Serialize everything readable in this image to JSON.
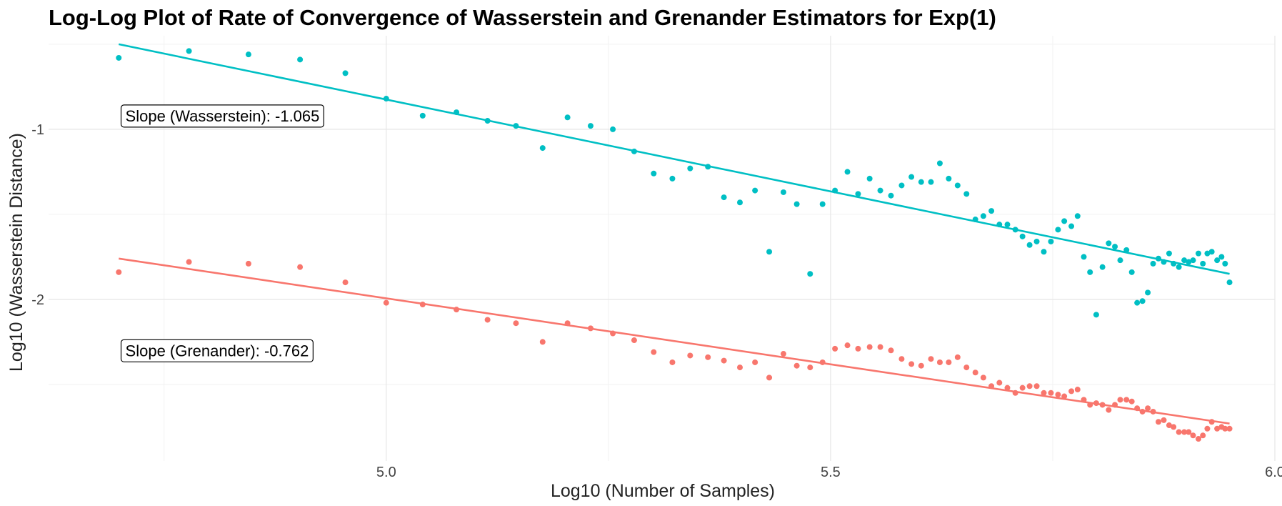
{
  "chart_data": {
    "type": "scatter",
    "title": "Log-Log Plot of Rate of Convergence of Wasserstein and Grenander Estimators for Exp(1)",
    "xlabel": "Log10 (Number of Samples)",
    "ylabel": "Log10 (Wasserstein Distance)",
    "xlim": [
      4.62,
      6.0
    ],
    "ylim": [
      -2.95,
      -0.45
    ],
    "x_ticks": [
      5.0,
      5.5,
      6.0
    ],
    "x_tick_labels": [
      "5.0",
      "5.5",
      "6.0"
    ],
    "y_ticks": [
      -1,
      -2
    ],
    "y_tick_labels": [
      "-1",
      "-2"
    ],
    "grid": true,
    "legend": "none",
    "series": [
      {
        "color": "#00BFC4",
        "x": [
          4.699,
          4.778,
          4.845,
          4.903,
          4.954,
          5.0,
          5.041,
          5.079,
          5.114,
          5.146,
          5.176,
          5.204,
          5.23,
          5.255,
          5.279,
          5.301,
          5.322,
          5.342,
          5.362,
          5.38,
          5.398,
          5.415,
          5.431,
          5.447,
          5.462,
          5.477,
          5.491,
          5.505,
          5.519,
          5.531,
          5.544,
          5.556,
          5.568,
          5.58,
          5.591,
          5.602,
          5.613,
          5.623,
          5.633,
          5.643,
          5.653,
          5.663,
          5.672,
          5.681,
          5.69,
          5.699,
          5.708,
          5.716,
          5.724,
          5.732,
          5.74,
          5.748,
          5.756,
          5.763,
          5.771,
          5.778,
          5.785,
          5.792,
          5.799,
          5.806,
          5.813,
          5.82,
          5.826,
          5.833,
          5.839,
          5.845,
          5.851,
          5.857,
          5.863,
          5.869,
          5.875,
          5.881,
          5.886,
          5.892,
          5.898,
          5.903,
          5.908,
          5.914,
          5.919,
          5.924,
          5.929,
          5.935,
          5.94,
          5.944,
          5.949
        ],
        "y": [
          -0.58,
          -0.54,
          -0.56,
          -0.59,
          -0.67,
          -0.82,
          -0.92,
          -0.9,
          -0.95,
          -0.98,
          -1.11,
          -0.93,
          -0.98,
          -1.0,
          -1.13,
          -1.26,
          -1.29,
          -1.23,
          -1.22,
          -1.4,
          -1.43,
          -1.36,
          -1.72,
          -1.37,
          -1.44,
          -1.85,
          -1.44,
          -1.36,
          -1.25,
          -1.38,
          -1.29,
          -1.36,
          -1.39,
          -1.33,
          -1.28,
          -1.31,
          -1.31,
          -1.2,
          -1.29,
          -1.33,
          -1.38,
          -1.53,
          -1.51,
          -1.48,
          -1.56,
          -1.56,
          -1.59,
          -1.63,
          -1.68,
          -1.66,
          -1.72,
          -1.66,
          -1.59,
          -1.54,
          -1.57,
          -1.51,
          -1.75,
          -1.84,
          -2.09,
          -1.81,
          -1.67,
          -1.69,
          -1.77,
          -1.71,
          -1.84,
          -2.02,
          -2.01,
          -1.96,
          -1.79,
          -1.76,
          -1.78,
          -1.73,
          -1.79,
          -1.81,
          -1.77,
          -1.78,
          -1.77,
          -1.73,
          -1.79,
          -1.73,
          -1.72,
          -1.77,
          -1.75,
          -1.79,
          -1.9
        ]
      },
      {
        "color": "#F8766D",
        "x": [
          4.699,
          4.778,
          4.845,
          4.903,
          4.954,
          5.0,
          5.041,
          5.079,
          5.114,
          5.146,
          5.176,
          5.204,
          5.23,
          5.255,
          5.279,
          5.301,
          5.322,
          5.342,
          5.362,
          5.38,
          5.398,
          5.415,
          5.431,
          5.447,
          5.462,
          5.477,
          5.491,
          5.505,
          5.519,
          5.531,
          5.544,
          5.556,
          5.568,
          5.58,
          5.591,
          5.602,
          5.613,
          5.623,
          5.633,
          5.643,
          5.653,
          5.663,
          5.672,
          5.681,
          5.69,
          5.699,
          5.708,
          5.716,
          5.724,
          5.732,
          5.74,
          5.748,
          5.756,
          5.763,
          5.771,
          5.778,
          5.785,
          5.792,
          5.799,
          5.806,
          5.813,
          5.82,
          5.826,
          5.833,
          5.839,
          5.845,
          5.851,
          5.857,
          5.863,
          5.869,
          5.875,
          5.881,
          5.886,
          5.892,
          5.898,
          5.903,
          5.908,
          5.914,
          5.919,
          5.924,
          5.929,
          5.935,
          5.94,
          5.944,
          5.949
        ],
        "y": [
          -1.84,
          -1.78,
          -1.79,
          -1.81,
          -1.9,
          -2.02,
          -2.03,
          -2.06,
          -2.12,
          -2.14,
          -2.25,
          -2.14,
          -2.17,
          -2.2,
          -2.24,
          -2.31,
          -2.37,
          -2.33,
          -2.34,
          -2.36,
          -2.4,
          -2.37,
          -2.46,
          -2.32,
          -2.39,
          -2.4,
          -2.37,
          -2.29,
          -2.27,
          -2.29,
          -2.28,
          -2.28,
          -2.3,
          -2.35,
          -2.38,
          -2.39,
          -2.35,
          -2.37,
          -2.37,
          -2.34,
          -2.4,
          -2.43,
          -2.46,
          -2.51,
          -2.49,
          -2.52,
          -2.55,
          -2.52,
          -2.51,
          -2.51,
          -2.55,
          -2.55,
          -2.56,
          -2.57,
          -2.54,
          -2.53,
          -2.59,
          -2.62,
          -2.61,
          -2.62,
          -2.65,
          -2.62,
          -2.59,
          -2.59,
          -2.6,
          -2.64,
          -2.66,
          -2.64,
          -2.66,
          -2.72,
          -2.71,
          -2.74,
          -2.75,
          -2.78,
          -2.78,
          -2.78,
          -2.8,
          -2.82,
          -2.8,
          -2.76,
          -2.72,
          -2.76,
          -2.75,
          -2.76,
          -2.76
        ]
      }
    ],
    "fit_lines": [
      {
        "color": "#00BFC4",
        "x": [
          4.699,
          5.949
        ],
        "y": [
          -0.5,
          -1.85
        ]
      },
      {
        "color": "#F8766D",
        "x": [
          4.699,
          5.949
        ],
        "y": [
          -1.76,
          -2.73
        ]
      }
    ],
    "annotations": [
      {
        "text": "Slope (Wasserstein): -1.065",
        "x": 4.7,
        "y": -0.92
      },
      {
        "text": "Slope (Grenander): -0.762",
        "x": 4.7,
        "y": -2.3
      }
    ]
  }
}
